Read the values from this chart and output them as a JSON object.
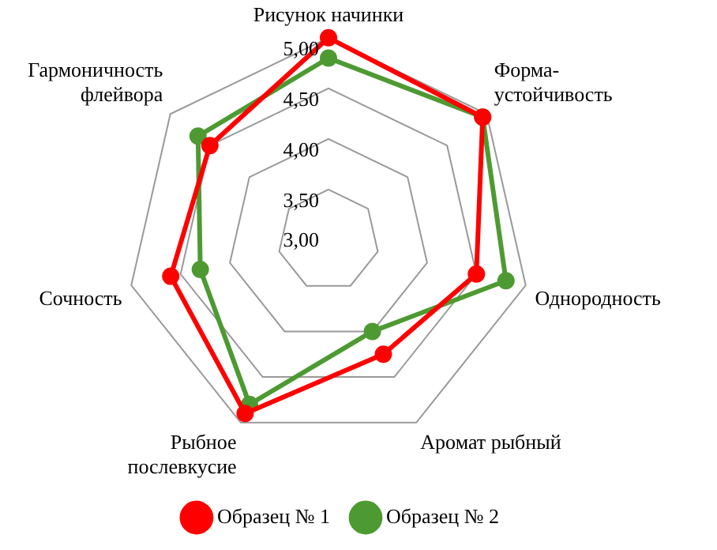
{
  "chart_data": {
    "type": "radar",
    "categories": [
      "Рисунок начинки",
      "Форма-\nустойчивость",
      "Однородность",
      "Аромат рыбный",
      "Рыбное\nпослевкусие",
      "Сочность",
      "Гармоничность\nфлейвора"
    ],
    "series": [
      {
        "name": "Образец № 1",
        "color": "#ff0000",
        "values": [
          5.0,
          4.95,
          4.5,
          4.25,
          4.9,
          4.6,
          4.5
        ]
      },
      {
        "name": "Образец № 2",
        "color": "#4e9a32",
        "values": [
          4.8,
          4.95,
          4.8,
          4.0,
          4.8,
          4.3,
          4.65
        ]
      }
    ],
    "ylim": [
      3,
      5
    ],
    "yticks": [
      {
        "value": 3,
        "label": "3,00"
      },
      {
        "value": 3.5,
        "label": "3,50"
      },
      {
        "value": 4,
        "label": "4,00"
      },
      {
        "value": 4.5,
        "label": "4,50"
      },
      {
        "value": 5,
        "label": "5,00"
      }
    ],
    "grid": true,
    "legend": "bottom",
    "marker": "circle"
  }
}
